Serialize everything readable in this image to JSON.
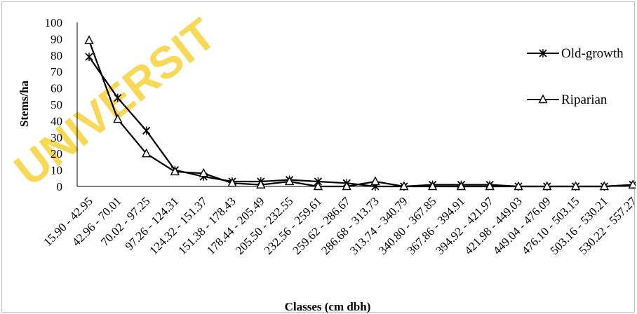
{
  "watermark": "UNIVERSIT",
  "chart_data": {
    "type": "line",
    "title": "",
    "xlabel": "Classes  (cm dbh)",
    "ylabel": "Stems/ha",
    "ylim": [
      0,
      100
    ],
    "yticks": [
      0,
      10,
      20,
      30,
      40,
      50,
      60,
      70,
      80,
      90,
      100
    ],
    "grid": false,
    "legend_position": "right",
    "categories": [
      "15.90 - 42.95",
      "42.96 - 70.01",
      "70.02 - 97.25",
      "97.26 - 124.31",
      "124.32 - 151.37",
      "151.38 - 178.43",
      "178.44 - 205.49",
      "205.50 - 232.55",
      "232.56 - 259.61",
      "259.62 - 286.67",
      "286.68 - 313.73",
      "313.74 - 340.79",
      "340.80 - 367.85",
      "367.86 - 394.91",
      "394.92 - 421.97",
      "421.98 - 449.03",
      "449.04 - 476.09",
      "476.10 - 503.15",
      "503.16 - 530.21",
      "530.22 - 557.27"
    ],
    "series": [
      {
        "name": "Old-growth",
        "marker": "star",
        "color": "#000000",
        "values": [
          79,
          54,
          34,
          10,
          6,
          3,
          3,
          4,
          3,
          2,
          0,
          0,
          1,
          1,
          1,
          0,
          0,
          0,
          0,
          1
        ]
      },
      {
        "name": "Riparian",
        "marker": "triangle",
        "color": "#000000",
        "values": [
          89,
          41,
          20,
          9,
          8,
          2,
          1,
          3,
          0,
          0,
          3,
          0,
          0,
          0,
          0,
          0,
          0,
          0,
          0,
          1
        ]
      }
    ]
  }
}
